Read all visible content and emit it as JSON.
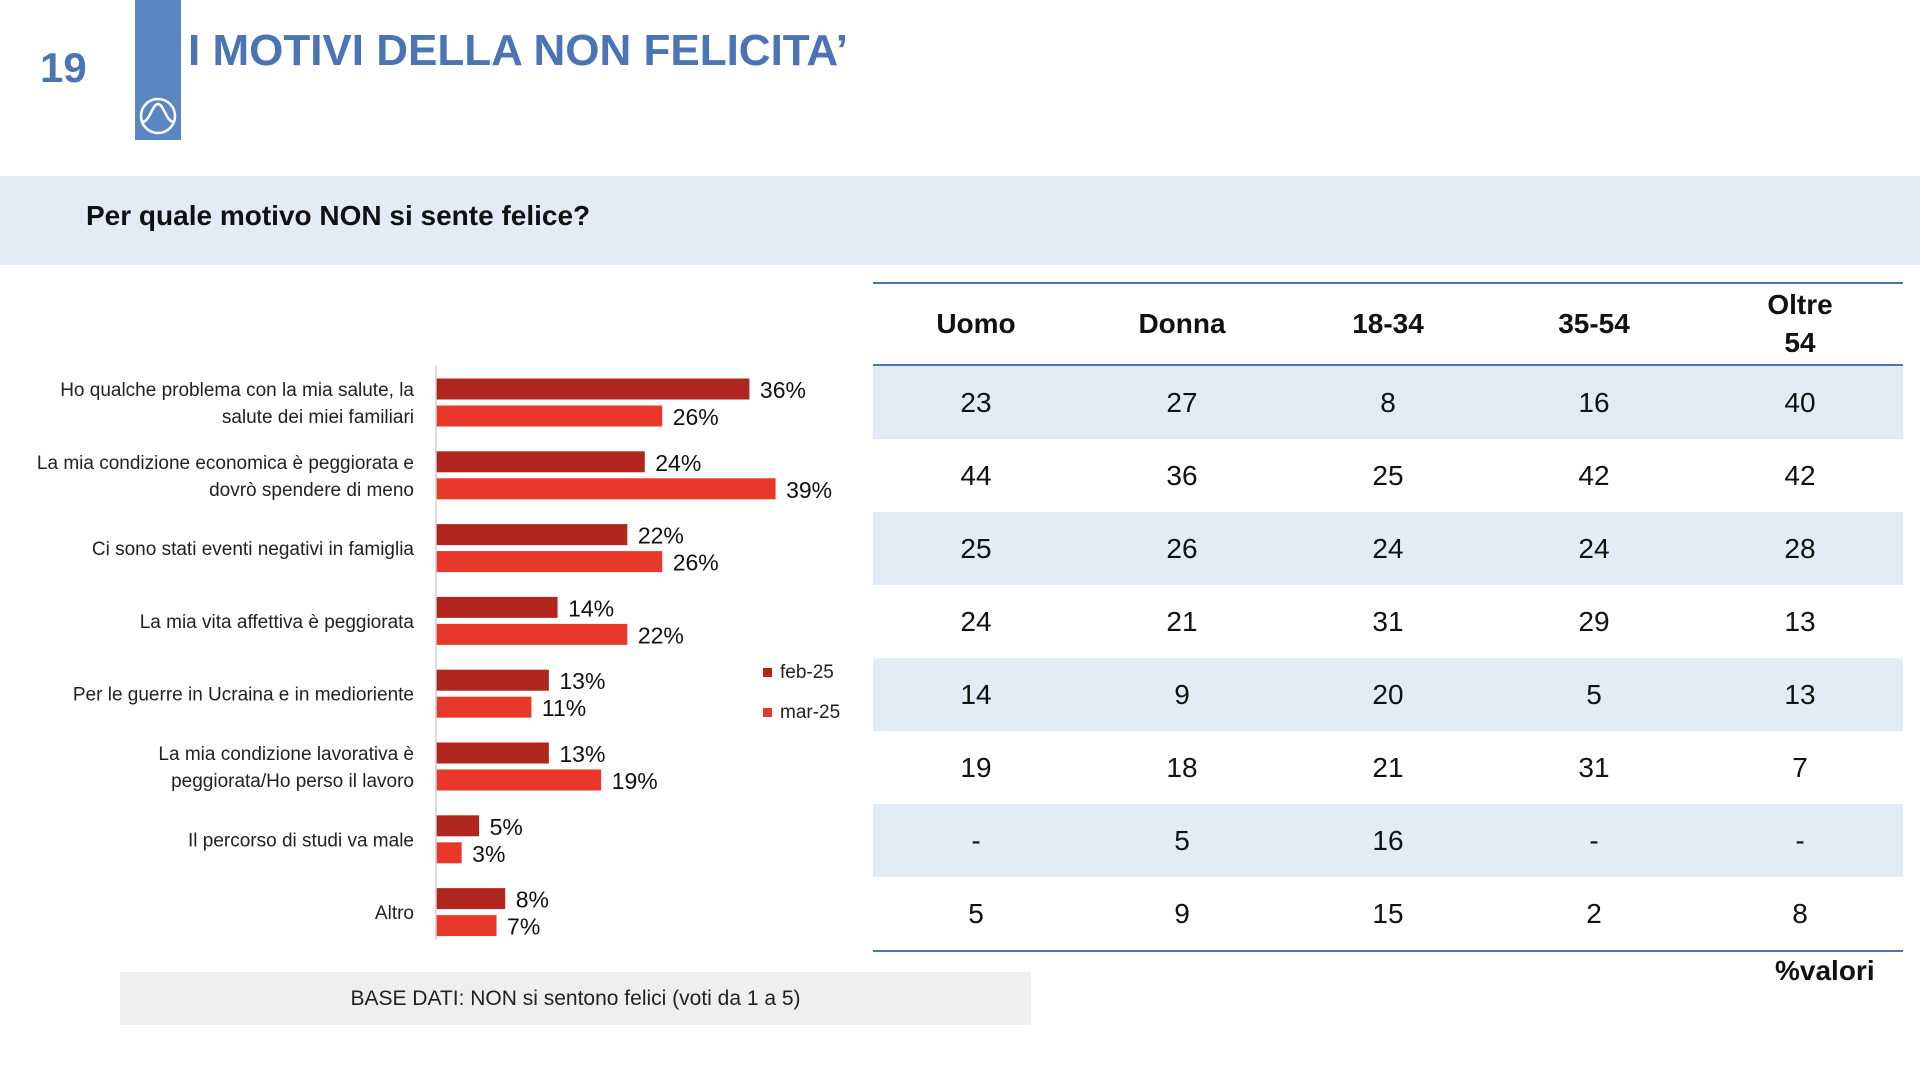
{
  "page_number": "19",
  "title": "I MOTIVI DELLA NON FELICITA’",
  "question": "Per quale motivo NON si sente felice?",
  "colors": {
    "feb": "#b0261f",
    "mar": "#e8382a",
    "accent": "#4a74b5",
    "band": "#e2ebf6"
  },
  "chart_data": {
    "type": "bar",
    "orientation": "horizontal",
    "categories": [
      [
        "Ho qualche problema con la mia salute, la",
        "salute dei miei familiari"
      ],
      [
        "La mia condizione economica è peggiorata e",
        "dovrò spendere di meno"
      ],
      [
        "Ci sono stati eventi negativi in famiglia"
      ],
      [
        "La mia vita affettiva è peggiorata"
      ],
      [
        "Per le guerre in Ucraina e in medioriente"
      ],
      [
        "La mia condizione lavorativa è",
        "peggiorata/Ho perso il lavoro"
      ],
      [
        "Il percorso di studi va male"
      ],
      [
        "Altro"
      ]
    ],
    "series": [
      {
        "name": "feb-25",
        "color": "#b0261f",
        "values": [
          36,
          24,
          22,
          14,
          13,
          13,
          5,
          8
        ]
      },
      {
        "name": "mar-25",
        "color": "#e8382a",
        "values": [
          26,
          39,
          26,
          22,
          11,
          19,
          3,
          7
        ]
      }
    ],
    "value_suffix": "%",
    "legend_position": "right",
    "xlim": [
      0,
      40
    ],
    "grid": false
  },
  "table": {
    "headers": [
      "Uomo",
      "Donna",
      "18-34",
      "35-54",
      "Oltre 54"
    ],
    "rows": [
      [
        "23",
        "27",
        "8",
        "16",
        "40"
      ],
      [
        "44",
        "36",
        "25",
        "42",
        "42"
      ],
      [
        "25",
        "26",
        "24",
        "24",
        "28"
      ],
      [
        "24",
        "21",
        "31",
        "29",
        "13"
      ],
      [
        "14",
        "9",
        "20",
        "5",
        "13"
      ],
      [
        "19",
        "18",
        "21",
        "31",
        "7"
      ],
      [
        "-",
        "5",
        "16",
        "-",
        "-"
      ],
      [
        "5",
        "9",
        "15",
        "2",
        "8"
      ]
    ]
  },
  "unit_note": "%valori",
  "base_note": "BASE DATI: NON si sentono felici (voti da 1 a 5)"
}
